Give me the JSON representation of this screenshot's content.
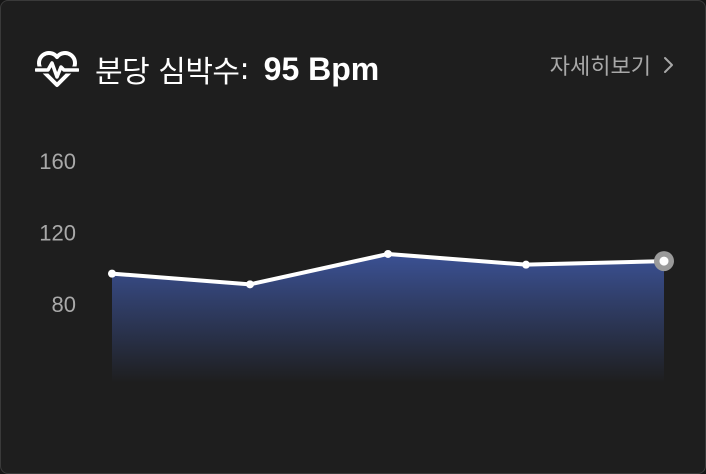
{
  "header": {
    "title_label": "분당 심박수",
    "title_colon": ":",
    "title_value": "95 Bpm",
    "icon": "heart-rate-icon"
  },
  "detail_link": {
    "label": "자세히보기",
    "icon": "chevron-right-icon"
  },
  "colors": {
    "background": "#1e1e1e",
    "line": "#ffffff",
    "area_top": "#3b5194",
    "area_bottom": "#1e1e1e",
    "tick_text": "#a9a9a9"
  },
  "chart_data": {
    "type": "area",
    "x": [
      1,
      2,
      3,
      4,
      5
    ],
    "values": [
      97,
      91,
      108,
      102,
      104
    ],
    "yticks": [
      160,
      120,
      80
    ],
    "ylim": [
      40,
      160
    ],
    "grid": false,
    "highlight_last_point": true
  }
}
